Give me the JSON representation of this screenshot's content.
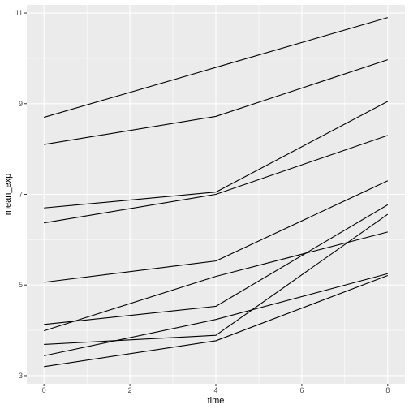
{
  "chart_data": {
    "type": "line",
    "xlabel": "time",
    "ylabel": "mean_exp",
    "xlim": [
      -0.4,
      8.4
    ],
    "ylim": [
      2.82,
      11.18
    ],
    "x_ticks": [
      0,
      2,
      4,
      6,
      8
    ],
    "y_ticks": [
      3,
      5,
      7,
      9,
      11
    ],
    "x_tick_labels": [
      "0",
      "2",
      "4",
      "6",
      "8"
    ],
    "y_tick_labels": [
      "3",
      "5",
      "7",
      "9",
      "11"
    ],
    "grid": true,
    "legend": "none",
    "line_color": "#000000",
    "panel_background": "#ebebeb",
    "grid_color": "#ffffff",
    "x": [
      0,
      4,
      8
    ],
    "series": [
      {
        "values": [
          8.7,
          9.8,
          10.9
        ]
      },
      {
        "values": [
          8.1,
          8.72,
          9.97
        ]
      },
      {
        "values": [
          6.7,
          7.05,
          9.05
        ]
      },
      {
        "values": [
          6.37,
          7.0,
          8.3
        ]
      },
      {
        "values": [
          5.06,
          5.53,
          7.3
        ]
      },
      {
        "values": [
          4.13,
          4.53,
          6.77
        ]
      },
      {
        "values": [
          3.99,
          5.19,
          6.17
        ]
      },
      {
        "values": [
          3.69,
          3.89,
          6.56
        ]
      },
      {
        "values": [
          3.44,
          4.24,
          5.25
        ]
      },
      {
        "values": [
          3.2,
          3.77,
          5.21
        ]
      }
    ]
  }
}
